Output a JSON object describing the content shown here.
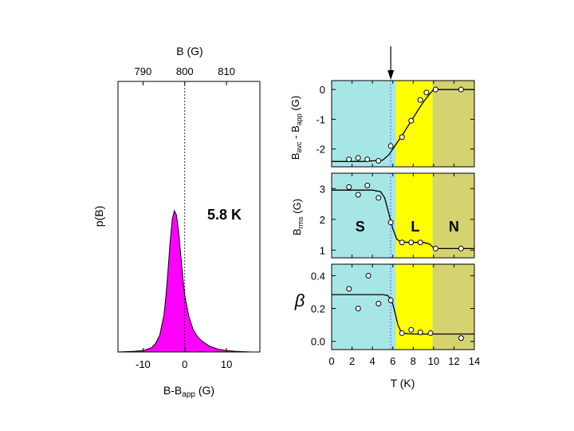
{
  "chart_data": [
    {
      "type": "area",
      "title": "",
      "annotation": "5.8 K",
      "xlabel": "B-B",
      "xlabel_sub": "app",
      "xlabel_unit": "(G)",
      "ylabel": "p(B)",
      "top_axis_label": "B (G)",
      "xlim": [
        -16,
        18
      ],
      "top_ticks": [
        {
          "value": -10,
          "label": "790"
        },
        {
          "value": 0,
          "label": "800"
        },
        {
          "value": 10,
          "label": "810"
        }
      ],
      "bottom_ticks": [
        {
          "value": -10,
          "label": "-10"
        },
        {
          "value": 0,
          "label": "0"
        },
        {
          "value": 10,
          "label": "10"
        }
      ],
      "reference_line_x": 0,
      "fill_color": "#ff00ff",
      "x": [
        -16,
        -12,
        -10,
        -8,
        -7,
        -6,
        -5,
        -4.5,
        -4,
        -3.5,
        -3,
        -2.5,
        -2,
        -1.5,
        -1,
        -0.5,
        0,
        1,
        2,
        3,
        4,
        5,
        6,
        7,
        8,
        10,
        12,
        14,
        16
      ],
      "y": [
        0,
        0.005,
        0.01,
        0.03,
        0.06,
        0.12,
        0.26,
        0.4,
        0.58,
        0.78,
        0.94,
        1.0,
        0.97,
        0.86,
        0.7,
        0.54,
        0.4,
        0.25,
        0.16,
        0.11,
        0.08,
        0.06,
        0.04,
        0.03,
        0.02,
        0.01,
        0.005,
        0.002,
        0
      ]
    },
    {
      "type": "scatter",
      "panel": "top",
      "ylabel_parts": {
        "a": "B",
        "a_sub": "avc",
        "b": " - B",
        "b_sub": "app",
        "unit": " (G)"
      },
      "xlim": [
        0,
        14
      ],
      "ylim": [
        -2.6,
        0.3
      ],
      "yticks": [
        0,
        -1,
        -2
      ],
      "x": [
        1.7,
        2.6,
        3.5,
        4.6,
        5.8,
        6.9,
        7.8,
        8.7,
        9.3,
        10.2,
        12.7
      ],
      "y": [
        -2.35,
        -2.3,
        -2.35,
        -2.4,
        -1.9,
        -1.6,
        -1.05,
        -0.35,
        -0.1,
        0.0,
        0.0
      ],
      "fit_x": [
        0,
        3,
        5,
        5.6,
        6,
        6.5,
        7,
        7.5,
        8,
        8.5,
        9,
        9.5,
        10,
        11,
        14
      ],
      "fit_y": [
        -2.42,
        -2.42,
        -2.38,
        -2.2,
        -2.0,
        -1.75,
        -1.5,
        -1.22,
        -0.95,
        -0.68,
        -0.42,
        -0.2,
        0.0,
        0.0,
        0.0
      ]
    },
    {
      "type": "scatter",
      "panel": "middle",
      "ylabel_parts": {
        "a": "B",
        "a_sub": "rms",
        "unit": " (G)"
      },
      "xlim": [
        0,
        14
      ],
      "ylim": [
        0.75,
        3.5
      ],
      "yticks": [
        3,
        2,
        1
      ],
      "x": [
        1.7,
        2.6,
        3.5,
        4.6,
        5.8,
        6.9,
        7.8,
        8.7,
        10.2,
        12.7
      ],
      "y": [
        3.05,
        2.8,
        3.1,
        2.7,
        1.9,
        1.25,
        1.25,
        1.25,
        1.05,
        1.05
      ],
      "fit_x": [
        0,
        4,
        4.8,
        5.2,
        5.6,
        6.0,
        6.4,
        6.8,
        7.5,
        9.0,
        9.6,
        10.0,
        10.5,
        14
      ],
      "fit_y": [
        2.95,
        2.95,
        2.9,
        2.7,
        2.2,
        1.7,
        1.35,
        1.27,
        1.25,
        1.25,
        1.2,
        1.08,
        1.05,
        1.05
      ],
      "region_labels": [
        {
          "text": "S",
          "x": 2.8
        },
        {
          "text": "L",
          "x": 8.2
        },
        {
          "text": "N",
          "x": 12.0
        }
      ]
    },
    {
      "type": "scatter",
      "panel": "bottom",
      "ylabel": "β",
      "xlabel": "T (K)",
      "xlim": [
        0,
        14
      ],
      "ylim": [
        -0.05,
        0.47
      ],
      "yticks": [
        0.4,
        0.2,
        0.0
      ],
      "ytick_labels": [
        "0.4",
        "0.2",
        "0.0"
      ],
      "xticks": [
        0,
        2,
        4,
        6,
        8,
        10,
        12,
        14
      ],
      "x": [
        1.7,
        2.6,
        3.6,
        4.6,
        5.8,
        6.9,
        7.8,
        8.7,
        9.7,
        12.7
      ],
      "y": [
        0.32,
        0.2,
        0.4,
        0.23,
        0.25,
        0.05,
        0.07,
        0.055,
        0.05,
        0.02
      ],
      "fit_x": [
        0,
        5.0,
        5.5,
        5.9,
        6.2,
        6.5,
        6.8,
        7.2,
        8.0,
        14
      ],
      "fit_y": [
        0.285,
        0.285,
        0.28,
        0.25,
        0.18,
        0.1,
        0.06,
        0.048,
        0.045,
        0.045
      ]
    }
  ],
  "regions": {
    "boundaries_T": [
      0,
      6.3,
      9.9,
      14
    ],
    "colors": [
      "#a7e6e6",
      "#ffff00",
      "#d5d270"
    ],
    "transition_line_T": 5.8,
    "transition_line_color": "#7777ff",
    "arrow_T": 5.8
  }
}
